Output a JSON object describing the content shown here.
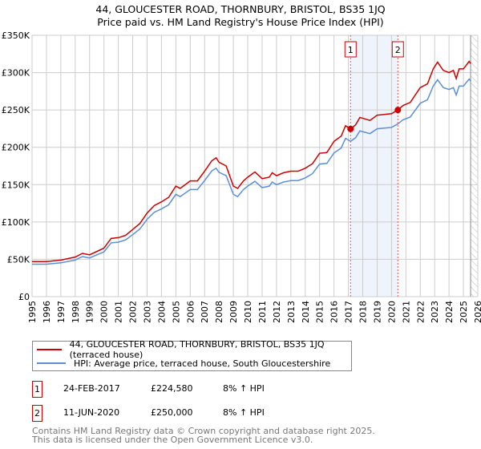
{
  "chart_data": {
    "type": "line",
    "title": "44, GLOUCESTER ROAD, THORNBURY, BRISTOL, BS35 1JQ",
    "subtitle": "Price paid vs. HM Land Registry's House Price Index (HPI)",
    "xlim": [
      1995,
      2026
    ],
    "ylim": [
      0,
      350000
    ],
    "y_ticks": [
      {
        "v": 0,
        "label": "£0"
      },
      {
        "v": 50000,
        "label": "£50K"
      },
      {
        "v": 100000,
        "label": "£100K"
      },
      {
        "v": 150000,
        "label": "£150K"
      },
      {
        "v": 200000,
        "label": "£200K"
      },
      {
        "v": 250000,
        "label": "£250K"
      },
      {
        "v": 300000,
        "label": "£300K"
      },
      {
        "v": 350000,
        "label": "£350K"
      }
    ],
    "x_ticks": [
      "1995",
      "1996",
      "1997",
      "1998",
      "1999",
      "2000",
      "2001",
      "2002",
      "2003",
      "2004",
      "2005",
      "2006",
      "2007",
      "2008",
      "2009",
      "2010",
      "2011",
      "2012",
      "2013",
      "2014",
      "2015",
      "2016",
      "2017",
      "2018",
      "2019",
      "2020",
      "2021",
      "2022",
      "2023",
      "2024",
      "2025",
      "2026"
    ],
    "x": [
      1995,
      1996,
      1997,
      1998,
      1998.5,
      1999,
      2000,
      2000.5,
      2001,
      2001.5,
      2002,
      2002.5,
      2003,
      2003.5,
      2004,
      2004.5,
      2005,
      2005.3,
      2006,
      2006.5,
      2007,
      2007.5,
      2007.8,
      2008,
      2008.5,
      2009,
      2009.3,
      2009.7,
      2010,
      2010.5,
      2011,
      2011.5,
      2011.7,
      2012,
      2012.5,
      2013,
      2013.5,
      2014,
      2014.5,
      2015,
      2015.5,
      2016,
      2016.5,
      2016.8,
      2017.15,
      2017.5,
      2017.8,
      2018.5,
      2019,
      2019.5,
      2020,
      2020.44,
      2020.8,
      2021.3,
      2022,
      2022.5,
      2022.9,
      2023.2,
      2023.6,
      2024,
      2024.3,
      2024.5,
      2024.7,
      2025,
      2025.4,
      2025.5
    ],
    "series": [
      {
        "name": "44, GLOUCESTER ROAD, THORNBURY, BRISTOL, BS35 1JQ (terraced house)",
        "color": "#cc0000",
        "values": [
          47,
          47,
          49,
          53,
          58,
          56,
          65,
          78,
          79,
          82,
          90,
          98,
          112,
          122,
          127,
          133,
          148,
          145,
          155,
          155,
          168,
          182,
          186,
          180,
          175,
          148,
          145,
          155,
          160,
          167,
          158,
          160,
          166,
          162,
          166,
          168,
          168,
          172,
          178,
          192,
          193,
          208,
          215,
          229,
          224.6,
          230,
          240,
          236,
          243,
          244,
          245,
          250,
          256,
          260,
          280,
          285,
          305,
          314,
          303,
          300,
          303,
          292,
          305,
          305,
          315,
          312
        ]
      },
      {
        "name": "HPI: Average price, terraced house, South Gloucestershire",
        "color": "#5b8fd6",
        "values": [
          43.5,
          43.5,
          45.3,
          49,
          53.7,
          51.8,
          60,
          72,
          73,
          76,
          83,
          90.7,
          103.6,
          113,
          117.5,
          123,
          137,
          134,
          143.4,
          143.4,
          155.4,
          168.4,
          172,
          166.5,
          162,
          137,
          134,
          143.4,
          148,
          154.5,
          146,
          148,
          153.5,
          150,
          153.5,
          155.4,
          155.4,
          159,
          164.7,
          177.6,
          178.5,
          192.4,
          199,
          212,
          208,
          212.8,
          222,
          218.3,
          224.8,
          225.7,
          226.6,
          231.3,
          236.8,
          240.5,
          259,
          263.6,
          282,
          290.5,
          280,
          277.5,
          280,
          270,
          282,
          282,
          291.4,
          288.6
        ]
      }
    ],
    "value_unit": "thousands GBP",
    "sales": [
      {
        "label": "1",
        "x": 2017.15,
        "value": 224.58
      },
      {
        "label": "2",
        "x": 2020.44,
        "value": 250
      }
    ],
    "shaded_range": [
      2017.15,
      2020.44
    ],
    "hatched_from": 2025.5,
    "grid": true,
    "legend_position": "below"
  },
  "sales_table": [
    {
      "num": "1",
      "date": "24-FEB-2017",
      "price": "£224,580",
      "hpi": "8% ↑ HPI"
    },
    {
      "num": "2",
      "date": "11-JUN-2020",
      "price": "£250,000",
      "hpi": "8% ↑ HPI"
    }
  ],
  "footer": [
    "Contains HM Land Registry data © Crown copyright and database right 2025.",
    "This data is licensed under the Open Government Licence v3.0."
  ]
}
